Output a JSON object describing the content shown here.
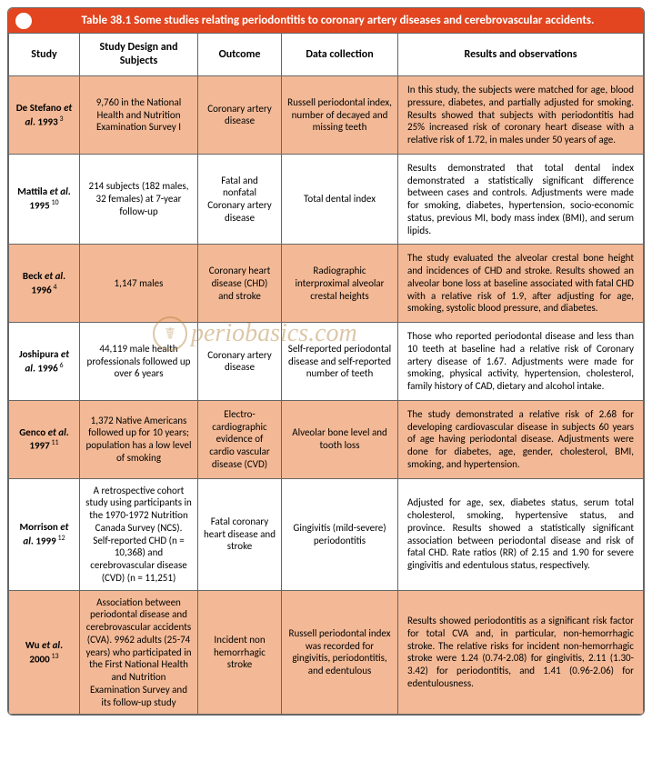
{
  "title": "Table 38.1 Some studies relating periodontitis to coronary artery diseases and cerebrovascular accidents.",
  "watermark": "periobasics.com",
  "headers": {
    "study": "Study",
    "design": "Study Design and Subjects",
    "outcome": "Outcome",
    "data": "Data collection",
    "results": "Results and observations"
  },
  "rows": [
    {
      "shade": true,
      "study_html": "De Stefano <i>et al</i>. 1993",
      "ref": "3",
      "design": "9,760 in the National Health and Nutrition Examination Survey I",
      "outcome": "Coronary artery disease",
      "data": "Russell periodontal index, number of decayed and missing teeth",
      "results": "In this study, the subjects were matched for age, blood pressure, diabetes, and partially adjusted for smoking. Results showed that subjects with periodontitis had 25% increased risk of coronary heart disease with a relative risk of 1.72, in males under 50 years of age."
    },
    {
      "shade": false,
      "study_html": "Mattila <i>et al</i>. 1995",
      "ref": "10",
      "design": "214 subjects (182 males, 32 females) at 7-year follow-up",
      "outcome": "Fatal and nonfatal Coronary artery disease",
      "data": "Total dental index",
      "results": "Results demonstrated that total dental index demonstrated a statistically significant difference between cases and controls. Adjustments were made for smoking, diabetes, hypertension, socio-economic status, previous MI, body mass index (BMI), and serum lipids."
    },
    {
      "shade": true,
      "study_html": "Beck <i>et al</i>. 1996",
      "ref": "4",
      "design": "1,147 males",
      "outcome": "Coronary heart disease (CHD) and stroke",
      "data": "Radiographic interproximal alveolar crestal heights",
      "results": "The study evaluated the alveolar crestal bone height and incidences of CHD and stroke. Results showed an alveolar bone loss at baseline associated with fatal CHD with a relative risk of 1.9, after adjusting for age, smoking, systolic blood pressure, and diabetes."
    },
    {
      "shade": false,
      "study_html": "Joshipura <i>et al</i>. 1996",
      "ref": "6",
      "design": "44,119 male health professionals followed up over 6 years",
      "outcome": "Coronary artery disease",
      "data": "Self-reported periodontal disease and self-reported number of teeth",
      "results": "Those who reported periodontal disease and less than 10 teeth at baseline had a relative risk of Coronary artery disease of 1.67. Adjustments were made for smoking, physical activity, hypertension, cholesterol, family history of CAD, dietary and alcohol intake."
    },
    {
      "shade": true,
      "study_html": "Genco <i>et al</i>. 1997",
      "ref": "11",
      "design": "1,372 Native Americans followed up for 10 years; population has a low level of smoking",
      "outcome": "Electro-cardiographic evidence of cardio vascular disease (CVD)",
      "data": "Alveolar bone level and tooth loss",
      "results": "The study demonstrated a relative risk of 2.68 for developing cardiovascular disease in subjects 60 years of age having periodontal disease. Adjustments were done for diabetes, age, gender, cholesterol, BMI, smoking, and hypertension."
    },
    {
      "shade": false,
      "study_html": "Morrison <i>et al</i>. 1999",
      "ref": "12",
      "design": "A retrospective cohort study using participants in the 1970-1972 Nutrition Canada Survey (NCS). Self-reported CHD (n = 10,368) and cerebrovascular disease (CVD) (n = 11,251)",
      "outcome": "Fatal coronary heart disease and stroke",
      "data": "Gingivitis (mild-severe) periodontitis",
      "results": "Adjusted for age, sex, diabetes status, serum total cholesterol, smoking, hypertensive status, and province. Results showed a statistically significant association between periodontal disease and risk of fatal CHD. Rate ratios (RR) of 2.15 and 1.90 for severe gingivitis and edentulous status, respectively."
    },
    {
      "shade": true,
      "study_html": "Wu <i>et al</i>. 2000",
      "ref": "13",
      "design": "Association between periodontal disease and cerebrovascular accidents (CVA). 9962 adults (25-74 years) who participated in the First National Health and Nutrition Examination Survey and its follow-up study",
      "outcome": "Incident non hemorrhagic stroke",
      "data": "Russell periodontal index was recorded for gingivitis, periodontitis, and edentulous",
      "results": "Results showed periodontitis as a significant risk factor for total CVA and, in particular, non-hemorrhagic stroke. The relative risks for incident non-hemorrhagic stroke were 1.24 (0.74-2.08) for gingivitis, 2.11 (1.30-3.42) for periodontitis, and 1.41 (0.96-2.06) for edentulousness."
    }
  ]
}
